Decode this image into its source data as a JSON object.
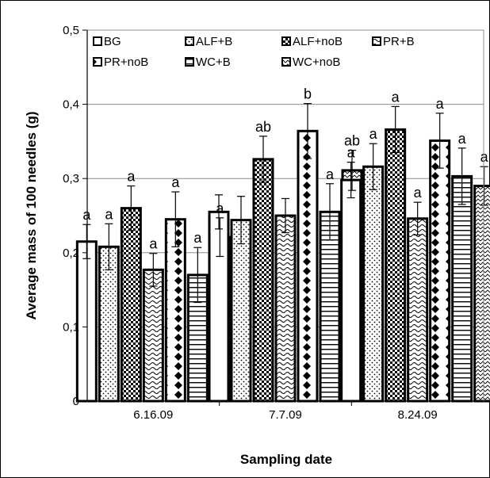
{
  "chart_data": {
    "type": "bar",
    "title": "",
    "xlabel": "Sampling date",
    "ylabel": "Average mass of 100 needles (g)",
    "ylim": [
      0,
      0.5
    ],
    "yticks": [
      "0",
      "0,1",
      "0,2",
      "0,3",
      "0,4",
      "0,5"
    ],
    "grid": true,
    "legend_position": "top-inside",
    "categories": [
      "6.16.09",
      "7.7.09",
      "8.24.09"
    ],
    "series": [
      {
        "name": "BG",
        "pattern": "white",
        "values": [
          0.215,
          0.255,
          0.298
        ],
        "errors": [
          0.023,
          0.023,
          0.024
        ],
        "labels": [
          "a",
          "",
          "a"
        ]
      },
      {
        "name": "ALF+B",
        "pattern": "dots",
        "values": [
          0.208,
          0.244,
          0.316
        ],
        "errors": [
          0.031,
          0.032,
          0.031
        ],
        "labels": [
          "a",
          "",
          "a"
        ]
      },
      {
        "name": "ALF+noB",
        "pattern": "checker",
        "values": [
          0.26,
          0.326,
          0.366
        ],
        "errors": [
          0.03,
          0.031,
          0.031
        ],
        "labels": [
          "a",
          "ab",
          "a"
        ]
      },
      {
        "name": "PR+B",
        "pattern": "wave",
        "values": [
          0.177,
          0.25,
          0.246
        ],
        "errors": [
          0.022,
          0.023,
          0.022
        ],
        "labels": [
          "a",
          "",
          "a"
        ]
      },
      {
        "name": "PR+noB",
        "pattern": "diamonds",
        "values": [
          0.245,
          0.364,
          0.351
        ],
        "errors": [
          0.037,
          0.037,
          0.037
        ],
        "labels": [
          "a",
          "b",
          "a"
        ]
      },
      {
        "name": "WC+B",
        "pattern": "horizontal",
        "values": [
          0.17,
          0.255,
          0.303
        ],
        "errors": [
          0.037,
          0.038,
          0.038
        ],
        "labels": [
          "a",
          "a",
          "a"
        ]
      },
      {
        "name": "WC+noB",
        "pattern": "zigzag",
        "values": [
          0.221,
          0.311,
          0.29
        ],
        "errors": [
          0.026,
          0.027,
          0.026
        ],
        "labels": [
          "a",
          "ab",
          "a"
        ]
      }
    ]
  }
}
